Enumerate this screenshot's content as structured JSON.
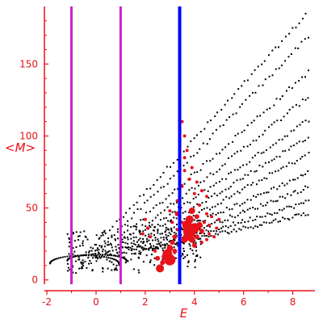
{
  "chart_data": {
    "type": "scatter",
    "title": "",
    "xlabel": "E",
    "ylabel": "<M>",
    "xlim": [
      -2.1,
      8.9
    ],
    "ylim": [
      -3,
      190
    ],
    "x_ticks": [
      -2,
      0,
      2,
      4,
      6,
      8
    ],
    "y_ticks": [
      0,
      50,
      100,
      150
    ],
    "x_tick_labels": [
      "-2",
      "0",
      "2",
      "4",
      "6",
      "8"
    ],
    "y_tick_labels": [
      "0",
      "50",
      "100",
      "150"
    ],
    "grid": false,
    "legend": "none",
    "colors": {
      "axes": "#e8121a",
      "background_points": "#000000",
      "highlight_points": "#e8121a",
      "vertical_line_blue": "#0000ff",
      "vertical_lines_magenta": "#cc22cc"
    },
    "vertical_lines": [
      {
        "x": -1.0,
        "color": "#cc22cc"
      },
      {
        "x": 1.0,
        "color": "#cc22cc"
      },
      {
        "x": 3.4,
        "color": "#0000ff"
      }
    ],
    "series": [
      {
        "color": "#000000",
        "kind": "band-curves",
        "description_points": {
          "curves": [
            {
              "x0": -1.0,
              "y0": 10,
              "x1": 8.5,
              "y1": 185
            },
            {
              "x0": -0.6,
              "y0": 12,
              "x1": 8.6,
              "y1": 170
            },
            {
              "x0": -0.3,
              "y0": 14,
              "x1": 8.6,
              "y1": 145
            },
            {
              "x0": 0.0,
              "y0": 15,
              "x1": 8.6,
              "y1": 128
            },
            {
              "x0": 0.3,
              "y0": 17,
              "x1": 8.6,
              "y1": 112
            },
            {
              "x0": 0.6,
              "y0": 18,
              "x1": 8.6,
              "y1": 100
            },
            {
              "x0": 0.9,
              "y0": 19,
              "x1": 8.6,
              "y1": 88
            },
            {
              "x0": 1.2,
              "y0": 20,
              "x1": 8.6,
              "y1": 75
            },
            {
              "x0": 1.5,
              "y0": 20,
              "x1": 8.6,
              "y1": 65
            },
            {
              "x0": 1.8,
              "y0": 21,
              "x1": 8.6,
              "y1": 55
            },
            {
              "x0": 2.1,
              "y0": 22,
              "x1": 8.6,
              "y1": 47
            }
          ],
          "arcs": [
            {
              "cx": -0.5,
              "cy": 12,
              "rx": 1.4,
              "ry": 8
            },
            {
              "cx": 0.0,
              "cy": 14,
              "rx": 1.2,
              "ry": 6
            }
          ]
        }
      },
      {
        "color": "#e8121a",
        "kind": "scatter",
        "points": [
          [
            2.6,
            8,
            5
          ],
          [
            2.7,
            12,
            3
          ],
          [
            2.8,
            16,
            4
          ],
          [
            2.9,
            18,
            6
          ],
          [
            3.0,
            14,
            7
          ],
          [
            3.0,
            22,
            4
          ],
          [
            3.1,
            26,
            3
          ],
          [
            3.2,
            20,
            3
          ],
          [
            3.2,
            30,
            3
          ],
          [
            3.3,
            35,
            2
          ],
          [
            3.3,
            46,
            3
          ],
          [
            3.3,
            55,
            2
          ],
          [
            3.4,
            60,
            2
          ],
          [
            3.5,
            40,
            2
          ],
          [
            3.5,
            65,
            2
          ],
          [
            3.6,
            28,
            4
          ],
          [
            3.6,
            76,
            2
          ],
          [
            3.7,
            30,
            5
          ],
          [
            3.7,
            38,
            6
          ],
          [
            3.8,
            34,
            8
          ],
          [
            3.8,
            42,
            5
          ],
          [
            3.9,
            28,
            4
          ],
          [
            3.9,
            48,
            4
          ],
          [
            4.0,
            36,
            6
          ],
          [
            4.0,
            24,
            3
          ],
          [
            4.1,
            30,
            3
          ],
          [
            4.1,
            44,
            3
          ],
          [
            4.2,
            38,
            4
          ],
          [
            4.2,
            52,
            2
          ],
          [
            4.3,
            26,
            2
          ],
          [
            4.3,
            34,
            3
          ],
          [
            4.4,
            40,
            2
          ],
          [
            4.5,
            46,
            2
          ],
          [
            4.5,
            28,
            2
          ],
          [
            4.6,
            32,
            2
          ],
          [
            4.6,
            38,
            2
          ],
          [
            4.7,
            44,
            2
          ],
          [
            4.8,
            30,
            2
          ],
          [
            4.9,
            36,
            2
          ],
          [
            5.0,
            42,
            2
          ],
          [
            3.6,
            100,
            2
          ],
          [
            3.5,
            110,
            2
          ],
          [
            3.4,
            95,
            2
          ],
          [
            3.7,
            90,
            2
          ],
          [
            3.6,
            85,
            2
          ],
          [
            4.3,
            62,
            2
          ],
          [
            4.5,
            58,
            2
          ],
          [
            2.5,
            15,
            3
          ],
          [
            2.4,
            20,
            2
          ],
          [
            2.2,
            30,
            2
          ],
          [
            2.1,
            36,
            2
          ],
          [
            2.0,
            42,
            2
          ],
          [
            1.9,
            32,
            2
          ],
          [
            3.1,
            40,
            2
          ],
          [
            3.0,
            48,
            2
          ],
          [
            3.8,
            70,
            2
          ],
          [
            3.9,
            78,
            2
          ],
          [
            4.0,
            60,
            2
          ],
          [
            4.1,
            68,
            2
          ],
          [
            3.4,
            82,
            2
          ]
        ]
      }
    ]
  }
}
